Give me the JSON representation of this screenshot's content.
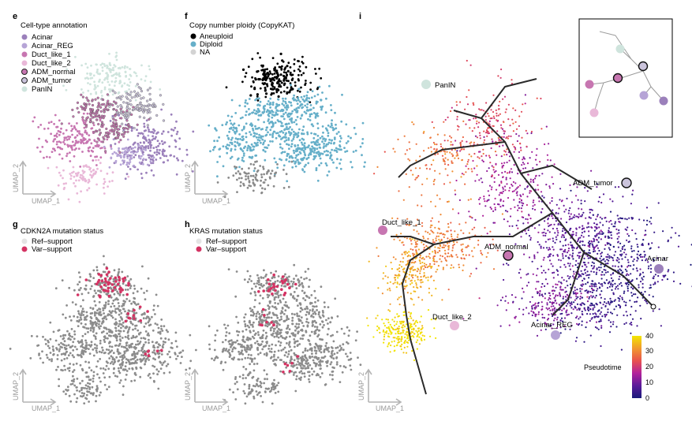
{
  "panels": {
    "e": {
      "letter": "e",
      "title": "Cell-type annotation",
      "legend": [
        {
          "label": "Acinar",
          "color": "#9b80bb",
          "outline": false
        },
        {
          "label": "Acinar_REG",
          "color": "#b6a4d6",
          "outline": false
        },
        {
          "label": "Duct_like_1",
          "color": "#c776b1",
          "outline": false
        },
        {
          "label": "Duct_like_2",
          "color": "#e9b8d8",
          "outline": false
        },
        {
          "label": "ADM_normal",
          "color": "#c776b1",
          "outline": true
        },
        {
          "label": "ADM_tumor",
          "color": "#cbc4dc",
          "outline": true
        },
        {
          "label": "PanIN",
          "color": "#cfe4dd",
          "outline": false
        }
      ],
      "xlabel": "UMAP_1",
      "ylabel": "UMAP_2"
    },
    "f": {
      "letter": "f",
      "title": "Copy number ploidy (CopyKAT)",
      "legend": [
        {
          "label": "Aneuploid",
          "color": "#000000"
        },
        {
          "label": "Diploid",
          "color": "#66afc9"
        },
        {
          "label": "NA",
          "color": "#d3d3d3"
        }
      ],
      "xlabel": "UMAP_1",
      "ylabel": "UMAP_2"
    },
    "g": {
      "letter": "g",
      "title": "CDKN2A mutation status",
      "legend": [
        {
          "label": "Ref–support",
          "color": "#e4e4e4"
        },
        {
          "label": "Var–support",
          "color": "#d43363"
        }
      ],
      "xlabel": "UMAP_1",
      "ylabel": "UMAP_2"
    },
    "h": {
      "letter": "h",
      "title": "KRAS mutation status",
      "legend": [
        {
          "label": "Ref–support",
          "color": "#e4e4e4"
        },
        {
          "label": "Var–support",
          "color": "#d43363"
        }
      ],
      "xlabel": "UMAP_1",
      "ylabel": "UMAP_2"
    },
    "i": {
      "letter": "i",
      "xlabel": "UMAP_1",
      "ylabel": "UMAP_2",
      "nodes": [
        {
          "label": "PanIN",
          "color": "#cfe4dd",
          "outline": false
        },
        {
          "label": "ADM_tumor",
          "color": "#cbc4dc",
          "outline": true
        },
        {
          "label": "Duct_like_1",
          "color": "#c776b1",
          "outline": false
        },
        {
          "label": "ADM_normal",
          "color": "#c776b1",
          "outline": true
        },
        {
          "label": "Acinar",
          "color": "#9b80bb",
          "outline": false
        },
        {
          "label": "Duct_like_2",
          "color": "#e9b8d8",
          "outline": false
        },
        {
          "label": "Acinar_REG",
          "color": "#b6a4d6",
          "outline": false
        }
      ],
      "colorbar": {
        "title": "Pseudotime",
        "ticks": [
          "0",
          "10",
          "20",
          "30",
          "40"
        ],
        "range": [
          0,
          40
        ],
        "colors": [
          "#1a1a7a",
          "#5a1a9a",
          "#b2229b",
          "#e8524f",
          "#f19a2e",
          "#f2e600"
        ]
      }
    }
  },
  "chart_data": [
    {
      "type": "scatter",
      "panel": "e",
      "title": "Cell-type annotation",
      "xlabel": "UMAP_1",
      "ylabel": "UMAP_2",
      "series": [
        {
          "name": "Acinar"
        },
        {
          "name": "Acinar_REG"
        },
        {
          "name": "Duct_like_1"
        },
        {
          "name": "Duct_like_2"
        },
        {
          "name": "ADM_normal"
        },
        {
          "name": "ADM_tumor"
        },
        {
          "name": "PanIN"
        }
      ]
    },
    {
      "type": "scatter",
      "panel": "f",
      "title": "Copy number ploidy (CopyKAT)",
      "xlabel": "UMAP_1",
      "ylabel": "UMAP_2",
      "series": [
        {
          "name": "Aneuploid"
        },
        {
          "name": "Diploid"
        },
        {
          "name": "NA"
        }
      ]
    },
    {
      "type": "scatter",
      "panel": "g",
      "title": "CDKN2A mutation status",
      "xlabel": "UMAP_1",
      "ylabel": "UMAP_2",
      "series": [
        {
          "name": "Ref–support"
        },
        {
          "name": "Var–support"
        }
      ]
    },
    {
      "type": "scatter",
      "panel": "h",
      "title": "KRAS mutation status",
      "xlabel": "UMAP_1",
      "ylabel": "UMAP_2",
      "series": [
        {
          "name": "Ref–support"
        },
        {
          "name": "Var–support"
        }
      ]
    },
    {
      "type": "scatter",
      "panel": "i",
      "xlabel": "UMAP_1",
      "ylabel": "UMAP_2",
      "color_scale": {
        "name": "Pseudotime",
        "min": 0,
        "max": 40,
        "ticks": [
          0,
          10,
          20,
          30,
          40
        ]
      }
    }
  ]
}
